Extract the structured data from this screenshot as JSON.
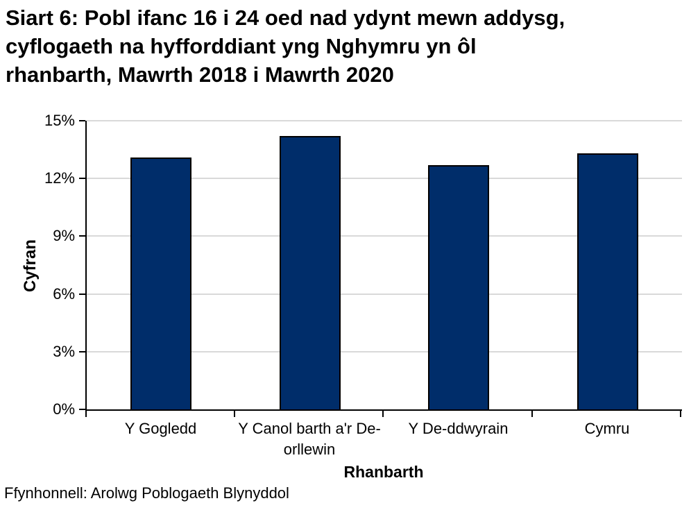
{
  "chart_data": {
    "type": "bar",
    "title": "Siart 6: Pobl ifanc 16 i 24 oed nad ydynt mewn addysg, cyflogaeth na hyfforddiant yng Nghymru yn ôl rhanbarth, Mawrth 2018 i Mawrth 2020",
    "title_lines": [
      "Siart 6: Pobl ifanc 16 i 24 oed nad ydynt mewn addysg,",
      "cyflogaeth na hyfforddiant yng Nghymru yn ôl",
      "rhanbarth, Mawrth 2018 i Mawrth 2020"
    ],
    "categories": [
      "Y Gogledd",
      "Y Canol barth a'r De-orllewin",
      "Y De-ddwyrain",
      "Cymru"
    ],
    "values": [
      13.1,
      14.2,
      12.7,
      13.3
    ],
    "value_unit": "%",
    "xlabel": "Rhanbarth",
    "ylabel": "Cyfran",
    "ylim": [
      0,
      15
    ],
    "ytick_step": 3,
    "yticks": [
      "0%",
      "3%",
      "6%",
      "9%",
      "12%",
      "15%"
    ],
    "grid": "horizontal-gridlines",
    "legend": "none",
    "bar_color": "#002d6a",
    "bar_border_color": "#000000",
    "gridline_color": "#d9d9d9",
    "axis_color": "#000000",
    "source": "Ffynhonnell: Arolwg Poblogaeth Blynyddol"
  }
}
